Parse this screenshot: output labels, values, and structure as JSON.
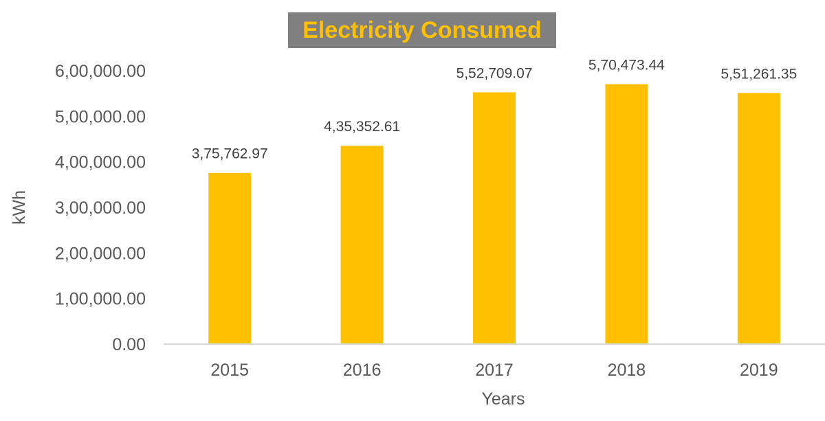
{
  "chart_data": {
    "type": "bar",
    "title": "Electricity Consumed",
    "xlabel": "Years",
    "ylabel": "kWh",
    "categories": [
      "2015",
      "2016",
      "2017",
      "2018",
      "2019"
    ],
    "values": [
      375762.97,
      435352.61,
      552709.07,
      570473.44,
      551261.35
    ],
    "data_labels": [
      "3,75,762.97",
      "4,35,352.61",
      "5,52,709.07",
      "5,70,473.44",
      "5,51,261.35"
    ],
    "y_ticks": [
      0,
      100000,
      200000,
      300000,
      400000,
      500000,
      600000
    ],
    "y_tick_labels": [
      "0.00",
      "1,00,000.00",
      "2,00,000.00",
      "3,00,000.00",
      "4,00,000.00",
      "5,00,000.00",
      "6,00,000.00"
    ],
    "ylim": [
      0,
      600000
    ],
    "grid": false,
    "legend": "none",
    "colors": {
      "bar": "#ffc000",
      "title_background": "#808080",
      "title_text": "#ffc000",
      "axis_line": "#d9d9d9",
      "tick_text": "#595959",
      "data_label_text": "#404040"
    }
  }
}
